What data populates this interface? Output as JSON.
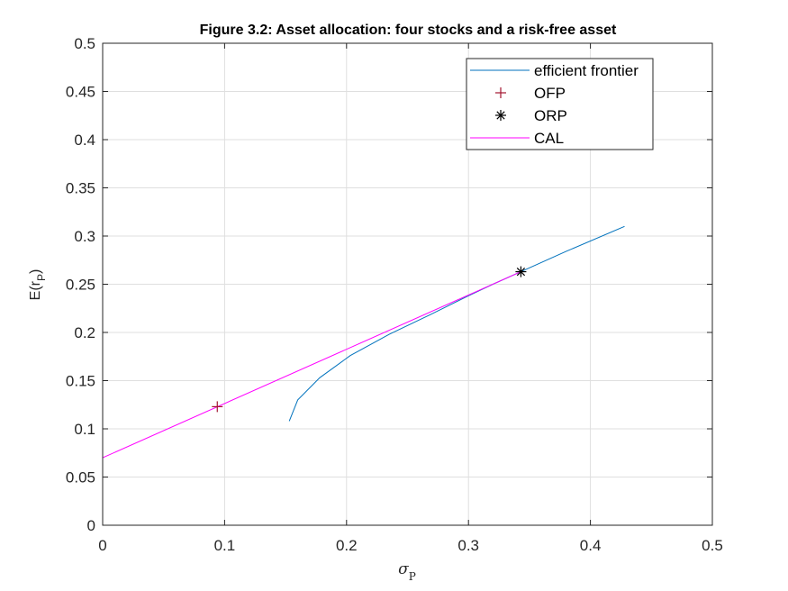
{
  "chart_data": {
    "type": "line",
    "title": "Figure 3.2: Asset allocation: four stocks and a risk-free asset",
    "xlabel": {
      "main": "σ",
      "sub": "P"
    },
    "ylabel": {
      "main": "E(r",
      "sub": "P",
      "close": ")"
    },
    "xlim": [
      0,
      0.5
    ],
    "ylim": [
      0,
      0.5
    ],
    "xticks": [
      0,
      0.1,
      0.2,
      0.3,
      0.4,
      0.5
    ],
    "xtick_labels": [
      "0",
      "0.1",
      "0.2",
      "0.3",
      "0.4",
      "0.5"
    ],
    "yticks": [
      0,
      0.05,
      0.1,
      0.15,
      0.2,
      0.25,
      0.3,
      0.35,
      0.4,
      0.45,
      0.5
    ],
    "ytick_labels": [
      "0",
      "0.05",
      "0.1",
      "0.15",
      "0.2",
      "0.25",
      "0.3",
      "0.35",
      "0.4",
      "0.45",
      "0.5"
    ],
    "grid": true,
    "legend_position": "top-right",
    "series": [
      {
        "name": "efficient frontier",
        "kind": "line",
        "color": "#0072bd",
        "points": [
          [
            0.153,
            0.108
          ],
          [
            0.16,
            0.13
          ],
          [
            0.178,
            0.153
          ],
          [
            0.203,
            0.176
          ],
          [
            0.235,
            0.198
          ],
          [
            0.268,
            0.218
          ],
          [
            0.3,
            0.238
          ],
          [
            0.32,
            0.25
          ],
          [
            0.343,
            0.263
          ],
          [
            0.38,
            0.284
          ],
          [
            0.428,
            0.31
          ]
        ]
      },
      {
        "name": "OFP",
        "kind": "marker",
        "marker": "plus",
        "color": "#a2142f",
        "points": [
          [
            0.094,
            0.123
          ]
        ]
      },
      {
        "name": "ORP",
        "kind": "marker",
        "marker": "asterisk",
        "color": "#000000",
        "points": [
          [
            0.343,
            0.263
          ]
        ]
      },
      {
        "name": "CAL",
        "kind": "line",
        "color": "#ff00ff",
        "points": [
          [
            0,
            0.07
          ],
          [
            0.343,
            0.263
          ]
        ]
      }
    ]
  }
}
